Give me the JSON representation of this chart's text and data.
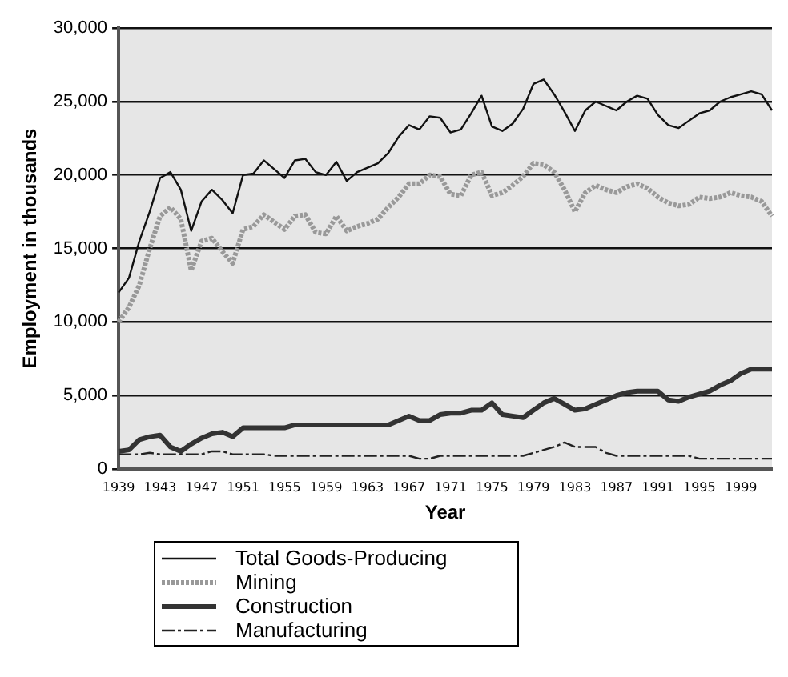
{
  "chart_data": {
    "type": "line",
    "xlabel": "Year",
    "ylabel": "Employment in thousands",
    "categories": [
      "1939",
      null,
      null,
      null,
      "1943",
      null,
      null,
      null,
      "1947",
      null,
      null,
      null,
      "1951",
      null,
      null,
      null,
      "1955",
      null,
      null,
      null,
      "1959",
      null,
      null,
      null,
      "1963",
      null,
      null,
      null,
      "1967",
      null,
      null,
      null,
      "1971",
      null,
      null,
      null,
      "1975",
      null,
      null,
      null,
      "1979",
      null,
      null,
      null,
      "1983",
      null,
      null,
      null,
      "1987",
      null,
      null,
      null,
      "1991",
      null,
      null,
      null,
      "1995",
      null,
      null,
      null,
      "1999",
      null,
      null,
      null
    ],
    "series": [
      {
        "name": "Total Goods-Producing",
        "color": "#111111",
        "line_style": "solid",
        "values": [
          12000,
          13000,
          15500,
          17500,
          19800,
          20200,
          19000,
          16200,
          18200,
          19000,
          18300,
          17400,
          20000,
          20100,
          21000,
          20400,
          19800,
          21000,
          21100,
          20200,
          20000,
          20900,
          19600,
          20200,
          20500,
          20800,
          21500,
          22600,
          23400,
          23100,
          24000,
          23900,
          22900,
          23100,
          24200,
          25400,
          23300,
          23000,
          23500,
          24500,
          26200,
          26500,
          25500,
          24300,
          23000,
          24400,
          25000,
          24700,
          24400,
          25000,
          25400,
          25200,
          24100,
          23400,
          23200,
          23700,
          24200,
          24400,
          25000,
          25300,
          25500,
          25700,
          25500,
          24400
        ]
      },
      {
        "name": "Mining",
        "color": "#999999",
        "line_style": "dotted",
        "values": [
          10000,
          11000,
          12500,
          15000,
          17200,
          17800,
          17000,
          13500,
          15500,
          15700,
          14800,
          14000,
          16300,
          16500,
          17300,
          16800,
          16300,
          17200,
          17300,
          16100,
          16000,
          17200,
          16200,
          16500,
          16700,
          17000,
          17800,
          18500,
          19400,
          19400,
          20000,
          19900,
          18700,
          18600,
          20000,
          20200,
          18600,
          18800,
          19300,
          19900,
          20800,
          20700,
          20200,
          19000,
          17500,
          18800,
          19300,
          19000,
          18800,
          19200,
          19400,
          19100,
          18500,
          18100,
          17900,
          18000,
          18500,
          18400,
          18500,
          18800,
          18600,
          18500,
          18200,
          17200
        ]
      },
      {
        "name": "Construction",
        "color": "#333333",
        "line_style": "solid",
        "values": [
          1200,
          1300,
          2000,
          2200,
          2300,
          1500,
          1200,
          1700,
          2100,
          2400,
          2500,
          2200,
          2800,
          2800,
          2800,
          2800,
          2800,
          3000,
          3000,
          3000,
          3000,
          3000,
          3000,
          3000,
          3000,
          3000,
          3000,
          3300,
          3600,
          3300,
          3300,
          3700,
          3800,
          3800,
          4000,
          4000,
          4500,
          3700,
          3600,
          3500,
          4000,
          4500,
          4800,
          4400,
          4000,
          4100,
          4400,
          4700,
          5000,
          5200,
          5300,
          5300,
          5300,
          4700,
          4600,
          4900,
          5100,
          5300,
          5700,
          6000,
          6500,
          6800,
          6800,
          6800
        ]
      },
      {
        "name": "Manufacturing",
        "color": "#222222",
        "line_style": "dashed",
        "values": [
          1000,
          1000,
          1000,
          1100,
          1000,
          1000,
          1000,
          1000,
          1000,
          1200,
          1200,
          1000,
          1000,
          1000,
          1000,
          900,
          900,
          900,
          900,
          900,
          900,
          900,
          900,
          900,
          900,
          900,
          900,
          900,
          900,
          700,
          700,
          900,
          900,
          900,
          900,
          900,
          900,
          900,
          900,
          900,
          1100,
          1300,
          1500,
          1800,
          1500,
          1500,
          1500,
          1100,
          900,
          900,
          900,
          900,
          900,
          900,
          900,
          900,
          700,
          700,
          700,
          700,
          700,
          700,
          700,
          700
        ]
      }
    ],
    "ylim": [
      0,
      30000
    ],
    "yticks": [
      {
        "value": 0,
        "label": "0"
      },
      {
        "value": 5000,
        "label": "5,000"
      },
      {
        "value": 10000,
        "label": "10,000"
      },
      {
        "value": 15000,
        "label": "15,000"
      },
      {
        "value": 20000,
        "label": "20,000"
      },
      {
        "value": 25000,
        "label": "25,000"
      },
      {
        "value": 30000,
        "label": "30,000"
      }
    ],
    "grid": "y",
    "legend": "bottom",
    "marker": "none"
  }
}
